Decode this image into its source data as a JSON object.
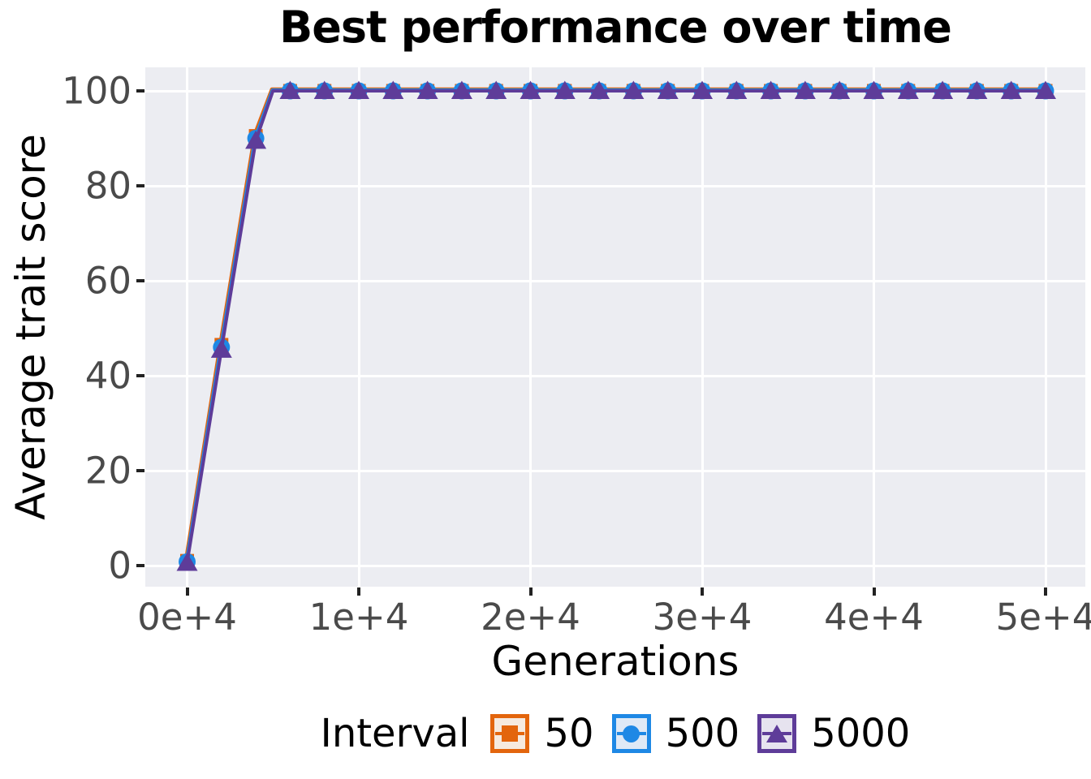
{
  "chart_data": {
    "type": "line",
    "title": "Best performance over time",
    "xlabel": "Generations",
    "ylabel": "Average trait score",
    "legend": {
      "title": "Interval",
      "position": "bottom"
    },
    "axes": {
      "xlim": [
        -2400,
        52300
      ],
      "ylim": [
        -4.5,
        105
      ],
      "x_ticks": [
        0,
        10000,
        20000,
        30000,
        40000,
        50000
      ],
      "x_tick_labels": [
        "0e+4",
        "1e+4",
        "2e+4",
        "3e+4",
        "4e+4",
        "5e+4"
      ],
      "y_ticks": [
        0,
        20,
        40,
        60,
        80,
        100
      ],
      "y_tick_labels": [
        "0",
        "20",
        "40",
        "60",
        "80",
        "100"
      ],
      "grid": "major-only"
    },
    "x": [
      0,
      2000,
      4000,
      6000,
      8000,
      10000,
      12000,
      14000,
      16000,
      18000,
      20000,
      22000,
      24000,
      26000,
      28000,
      30000,
      32000,
      34000,
      36000,
      38000,
      40000,
      42000,
      44000,
      46000,
      48000,
      50000
    ],
    "series": [
      {
        "name": "50",
        "marker": "square",
        "color": "#E3650D",
        "key_bg": "#F6EADF",
        "values": [
          1.0,
          46.5,
          90.5,
          100,
          100,
          100,
          100,
          100,
          100,
          100,
          100,
          100,
          100,
          100,
          100,
          100,
          100,
          100,
          100,
          100,
          100,
          100,
          100,
          100,
          100,
          100
        ]
      },
      {
        "name": "500",
        "marker": "circle",
        "color": "#1E88E5",
        "key_bg": "#DFE9F6",
        "values": [
          0.8,
          46.0,
          90.0,
          100,
          100,
          100,
          100,
          100,
          100,
          100,
          100,
          100,
          100,
          100,
          100,
          100,
          100,
          100,
          100,
          100,
          100,
          100,
          100,
          100,
          100,
          100
        ]
      },
      {
        "name": "5000",
        "marker": "triangle",
        "color": "#5E3C99",
        "key_bg": "#E6E3EF",
        "values": [
          0.6,
          45.5,
          89.5,
          100,
          100,
          100,
          100,
          100,
          100,
          100,
          100,
          100,
          100,
          100,
          100,
          100,
          100,
          100,
          100,
          100,
          100,
          100,
          100,
          100,
          100,
          100
        ]
      }
    ],
    "colors": {
      "plot_bg": "#ECEDF2",
      "grid": "#FFFFFF",
      "tick_text": "#4A4A4A",
      "tick_mark": "#222222",
      "title_text": "#000000"
    }
  }
}
